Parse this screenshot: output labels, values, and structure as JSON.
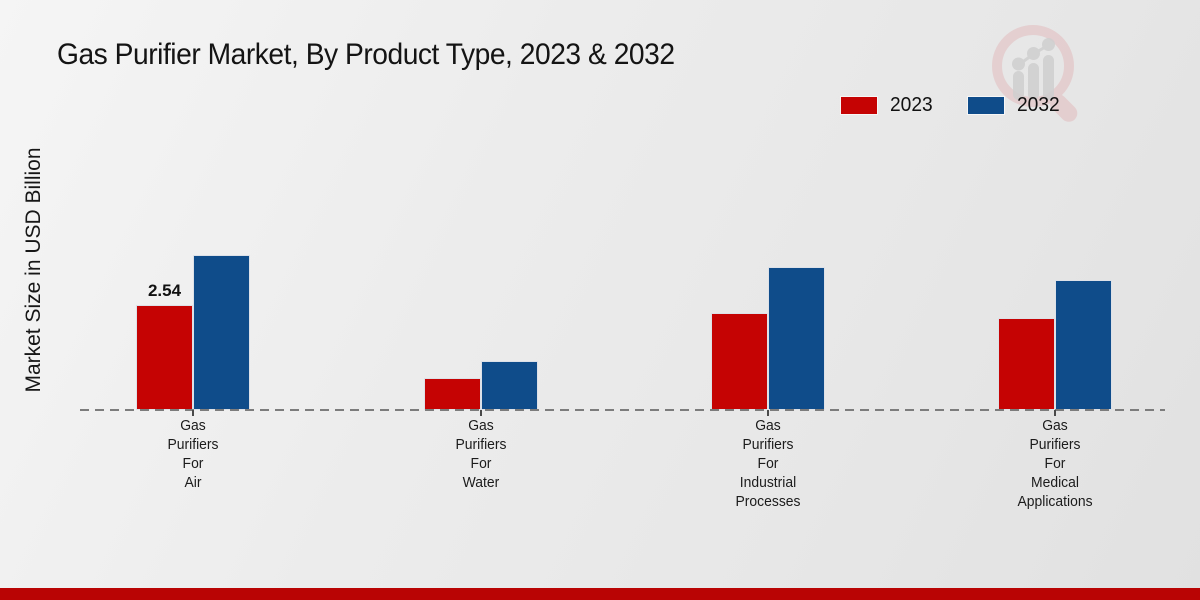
{
  "page": {
    "title": "Gas Purifier Market, By Product Type, 2023 & 2032",
    "watermark_icon": "magnifier-bar-chart-logo",
    "colors": {
      "series_2023_red": "#c50303",
      "series_2032_blue": "#0f4c8a",
      "footer_bar_red": "#b90404",
      "dashed_axis_grey": "#7c7c7c",
      "watermark_pink": "#e2b8ba",
      "watermark_grey": "#cfcfcf"
    }
  },
  "chart_data": {
    "type": "bar",
    "title": "Gas Purifier Market, By Product Type, 2023 & 2032",
    "xlabel": "",
    "ylabel": "Market Size in USD Billion",
    "categories": [
      "Gas Purifiers For Air",
      "Gas Purifiers For Water",
      "Gas Purifiers For Industrial Processes",
      "Gas Purifiers For Medical Applications"
    ],
    "category_display_lines": [
      "Gas\nPurifiers\nFor\nAir",
      "Gas\nPurifiers\nFor\nWater",
      "Gas\nPurifiers\nFor\nIndustrial\nProcesses",
      "Gas\nPurifiers\nFor\nMedical\nApplications"
    ],
    "series": [
      {
        "name": "2023",
        "color": "#c50303",
        "values": [
          2.54,
          0.77,
          2.35,
          2.23
        ]
      },
      {
        "name": "2032",
        "color": "#0f4c8a",
        "values": [
          3.75,
          1.19,
          3.46,
          3.15
        ]
      }
    ],
    "data_labels": [
      {
        "series": "2023",
        "category": "Gas Purifiers For Air",
        "text": "2.54"
      }
    ],
    "ylim": [
      0,
      4
    ],
    "grid": false,
    "legend_position": "top-right",
    "x_axis_style": "dashed-line-with-ticks",
    "units": "USD Billion"
  }
}
